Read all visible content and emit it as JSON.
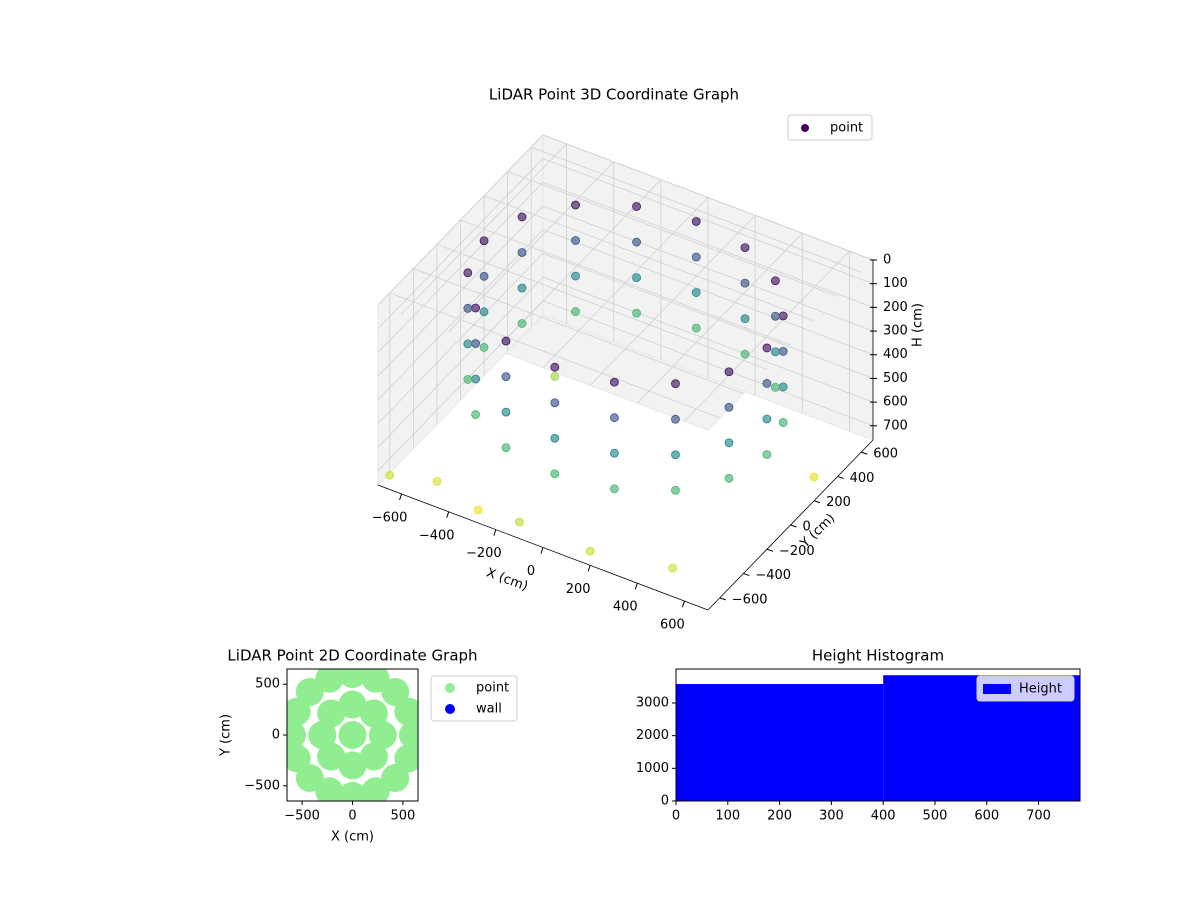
{
  "chart_data": [
    {
      "type": "scatter3d",
      "title": "LiDAR Point 3D Coordinate Graph",
      "xlabel": "X (cm)",
      "ylabel": "Y (cm)",
      "zlabel": "H (cm)",
      "cmap": "viridis",
      "zinvert": true,
      "legend": "upper right",
      "series": [
        {
          "name": "point",
          "x": [
            600,
            554,
            424,
            230,
            0,
            -230,
            -424,
            -554,
            -600,
            -554,
            -424,
            -230,
            0,
            230,
            424,
            554,
            600,
            554,
            424,
            230,
            0,
            -230,
            -424,
            -554,
            -600,
            -554,
            -424,
            -230,
            0,
            230,
            424,
            554,
            600,
            554,
            424,
            230,
            0,
            -230,
            -424,
            -554,
            -600,
            -554,
            -424,
            -230,
            0,
            230,
            424,
            554,
            600,
            554,
            424,
            230,
            0,
            -230,
            -424,
            -554,
            -600,
            -554,
            -424,
            -230,
            0,
            230,
            424,
            554,
            -650,
            -500,
            -300,
            -100,
            200,
            500,
            650,
            -400
          ],
          "y": [
            0,
            230,
            424,
            554,
            600,
            554,
            424,
            230,
            0,
            -230,
            -424,
            -554,
            -600,
            -554,
            -424,
            -230,
            0,
            230,
            424,
            554,
            600,
            554,
            424,
            230,
            0,
            -230,
            -424,
            -554,
            -600,
            -554,
            -424,
            -230,
            0,
            230,
            424,
            554,
            600,
            554,
            424,
            230,
            0,
            -230,
            -424,
            -554,
            -600,
            -554,
            -424,
            -230,
            0,
            230,
            424,
            554,
            600,
            554,
            424,
            230,
            0,
            -230,
            -424,
            -554,
            -600,
            -554,
            -424,
            -230,
            -700,
            -600,
            -650,
            -700,
            -700,
            -600,
            300,
            200
          ],
          "z": [
            50,
            50,
            50,
            50,
            50,
            50,
            50,
            50,
            50,
            50,
            50,
            50,
            50,
            50,
            50,
            50,
            200,
            200,
            200,
            200,
            200,
            200,
            200,
            200,
            200,
            200,
            200,
            200,
            200,
            200,
            200,
            200,
            350,
            350,
            350,
            350,
            350,
            350,
            350,
            350,
            350,
            350,
            350,
            350,
            350,
            350,
            350,
            350,
            500,
            500,
            500,
            500,
            500,
            500,
            500,
            500,
            500,
            500,
            500,
            500,
            500,
            500,
            500,
            500,
            700,
            720,
            740,
            690,
            700,
            710,
            730,
            650
          ]
        }
      ],
      "xlim": [
        -700,
        700
      ],
      "ylim": [
        -700,
        700
      ],
      "zlim": [
        0,
        760
      ],
      "xticks": [
        {
          "value": -600,
          "label": "−600"
        },
        {
          "value": -400,
          "label": "−400"
        },
        {
          "value": -200,
          "label": "−200"
        },
        0,
        200,
        400,
        600
      ],
      "yticks": [
        {
          "value": -600,
          "label": "−600"
        },
        {
          "value": -400,
          "label": "−400"
        },
        {
          "value": -200,
          "label": "−200"
        },
        0,
        200,
        400,
        600
      ],
      "zticks": [
        0,
        100,
        200,
        300,
        400,
        500,
        600,
        700
      ]
    },
    {
      "type": "scatter",
      "title": "LiDAR Point 2D Coordinate Graph",
      "xlabel": "X (cm)",
      "ylabel": "Y (cm)",
      "legend": "outside right",
      "series": [
        {
          "name": "point",
          "color": "#90ee90",
          "x": [
            600,
            554,
            424,
            230,
            0,
            -230,
            -424,
            -554,
            -600,
            -554,
            -424,
            -230,
            0,
            230,
            424,
            554,
            300,
            212,
            0,
            -212,
            -300,
            -212,
            0,
            212,
            0
          ],
          "values": [
            0,
            230,
            424,
            554,
            600,
            554,
            424,
            230,
            0,
            -230,
            -424,
            -554,
            -600,
            -554,
            -424,
            -230,
            0,
            212,
            300,
            212,
            0,
            -212,
            -300,
            -212,
            0
          ]
        },
        {
          "name": "wall",
          "color": "#0000ff",
          "x": [],
          "values": []
        }
      ],
      "xlim": [
        -650,
        650
      ],
      "ylim": [
        -650,
        650
      ],
      "xticks": [
        {
          "value": -500,
          "label": "−500"
        },
        0,
        500
      ],
      "yticks": [
        {
          "value": -500,
          "label": "−500"
        },
        0,
        500
      ]
    },
    {
      "type": "histogram",
      "title": "Height Histogram",
      "name": "Height",
      "color": "#0000ff",
      "legend": "upper right",
      "bins": [
        0,
        400,
        780
      ],
      "values": [
        3580,
        3850
      ],
      "xlim": [
        0,
        780
      ],
      "ylim": [
        0,
        4040
      ],
      "xticks": [
        0,
        100,
        200,
        300,
        400,
        500,
        600,
        700
      ],
      "yticks": [
        0,
        1000,
        2000,
        3000
      ]
    }
  ]
}
